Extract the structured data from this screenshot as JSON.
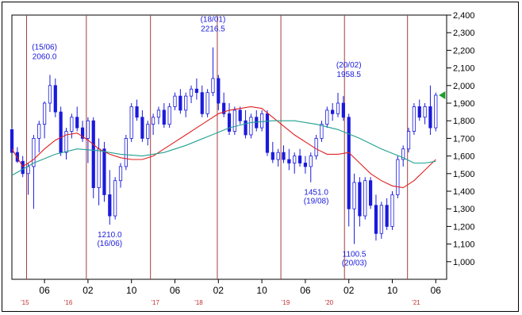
{
  "chart_data": {
    "type": "candlestick",
    "title": "",
    "xlabel": "",
    "ylabel": "",
    "ylim": [
      900,
      2400
    ],
    "yticks": [
      1000,
      1100,
      1200,
      1300,
      1400,
      1500,
      1600,
      1700,
      1800,
      1900,
      2000,
      2100,
      2200,
      2300,
      2400
    ],
    "ytick_labels": [
      "1,000",
      "1,100",
      "1,200",
      "1,300",
      "1,400",
      "1,500",
      "1,600",
      "1,700",
      "1,800",
      "1,900",
      "2,000",
      "2,100",
      "2,200",
      "2,300",
      "2,400"
    ],
    "x_ticks": [
      {
        "month": 6,
        "label": "06",
        "year_label": "'15"
      },
      {
        "month": 14,
        "label": "02",
        "year_label": "'16"
      },
      {
        "month": 22,
        "label": "10",
        "year_label": ""
      },
      {
        "month": 30,
        "label": "06",
        "year_label": "'17"
      },
      {
        "month": 38,
        "label": "02",
        "year_label": "'18"
      },
      {
        "month": 46,
        "label": "10",
        "year_label": ""
      },
      {
        "month": 54,
        "label": "06",
        "year_label": "'19"
      },
      {
        "month": 62,
        "label": "02",
        "year_label": "'20"
      },
      {
        "month": 70,
        "label": "10",
        "year_label": ""
      },
      {
        "month": 78,
        "label": "06",
        "year_label": "'21"
      }
    ],
    "x_range_months": [
      0,
      80
    ],
    "vertical_markers_months": [
      2.7,
      13.7,
      25.5,
      37.8,
      49.5,
      61.2,
      72.8
    ],
    "annotations": [
      {
        "date": "(15/06)",
        "value": "2060.0",
        "month": 6,
        "price": 2060,
        "position": "above"
      },
      {
        "date": "(16/06)",
        "value": "1210.0",
        "month": 18,
        "price": 1210,
        "position": "below"
      },
      {
        "date": "(18/01)",
        "value": "2216.5",
        "month": 37,
        "price": 2216.5,
        "position": "above"
      },
      {
        "date": "(19/08)",
        "value": "1451.0",
        "month": 56,
        "price": 1451,
        "position": "below"
      },
      {
        "date": "(20/02)",
        "value": "1958.5",
        "month": 62,
        "price": 1958.5,
        "position": "above"
      },
      {
        "date": "(20/03)",
        "value": "1100.5",
        "month": 63,
        "price": 1100.5,
        "position": "below"
      }
    ],
    "current_price": 1945,
    "series": [
      {
        "type": "candles",
        "colors": {
          "up": "#ffffff",
          "down": "#1a1adc",
          "outline": "#1a1adc"
        },
        "ohlc": [
          [
            1750,
            1760,
            1620,
            1620
          ],
          [
            1620,
            1650,
            1560,
            1570
          ],
          [
            1570,
            1600,
            1480,
            1500
          ],
          [
            1500,
            1560,
            1380,
            1540
          ],
          [
            1540,
            1720,
            1300,
            1700
          ],
          [
            1700,
            1800,
            1620,
            1780
          ],
          [
            1780,
            1910,
            1700,
            1900
          ],
          [
            1900,
            2060,
            1850,
            2000
          ],
          [
            2000,
            2040,
            1820,
            1850
          ],
          [
            1850,
            1880,
            1600,
            1620
          ],
          [
            1620,
            1760,
            1580,
            1740
          ],
          [
            1740,
            1840,
            1700,
            1820
          ],
          [
            1820,
            1880,
            1740,
            1760
          ],
          [
            1760,
            1800,
            1680,
            1700
          ],
          [
            1700,
            1820,
            1560,
            1800
          ],
          [
            1800,
            1820,
            1360,
            1420
          ],
          [
            1420,
            1700,
            1320,
            1640
          ],
          [
            1640,
            1680,
            1340,
            1380
          ],
          [
            1380,
            1520,
            1210,
            1260
          ],
          [
            1260,
            1480,
            1240,
            1460
          ],
          [
            1460,
            1560,
            1420,
            1540
          ],
          [
            1540,
            1720,
            1520,
            1700
          ],
          [
            1700,
            1900,
            1680,
            1880
          ],
          [
            1880,
            1920,
            1800,
            1820
          ],
          [
            1820,
            1860,
            1680,
            1700
          ],
          [
            1700,
            1800,
            1660,
            1780
          ],
          [
            1780,
            1840,
            1720,
            1820
          ],
          [
            1820,
            1880,
            1780,
            1860
          ],
          [
            1860,
            1900,
            1760,
            1780
          ],
          [
            1780,
            1900,
            1760,
            1880
          ],
          [
            1880,
            1960,
            1860,
            1940
          ],
          [
            1940,
            1980,
            1840,
            1860
          ],
          [
            1860,
            1960,
            1820,
            1940
          ],
          [
            1940,
            2000,
            1900,
            1980
          ],
          [
            1980,
            2040,
            1920,
            1960
          ],
          [
            1960,
            2000,
            1820,
            1840
          ],
          [
            1840,
            1980,
            1820,
            1960
          ],
          [
            1960,
            2216.5,
            1940,
            2040
          ],
          [
            2040,
            2060,
            1860,
            1900
          ],
          [
            1900,
            1960,
            1820,
            1840
          ],
          [
            1840,
            1900,
            1720,
            1740
          ],
          [
            1740,
            1880,
            1720,
            1860
          ],
          [
            1860,
            1880,
            1780,
            1800
          ],
          [
            1800,
            1860,
            1700,
            1720
          ],
          [
            1720,
            1840,
            1700,
            1820
          ],
          [
            1820,
            1860,
            1740,
            1760
          ],
          [
            1760,
            1860,
            1740,
            1840
          ],
          [
            1840,
            1860,
            1600,
            1620
          ],
          [
            1620,
            1680,
            1560,
            1580
          ],
          [
            1580,
            1640,
            1540,
            1620
          ],
          [
            1620,
            1660,
            1560,
            1580
          ],
          [
            1580,
            1640,
            1520,
            1560
          ],
          [
            1560,
            1620,
            1500,
            1600
          ],
          [
            1600,
            1640,
            1540,
            1560
          ],
          [
            1560,
            1600,
            1500,
            1540
          ],
          [
            1540,
            1620,
            1451,
            1600
          ],
          [
            1600,
            1720,
            1580,
            1700
          ],
          [
            1700,
            1800,
            1680,
            1780
          ],
          [
            1780,
            1880,
            1760,
            1860
          ],
          [
            1860,
            1900,
            1800,
            1840
          ],
          [
            1840,
            1958.5,
            1820,
            1900
          ],
          [
            1900,
            1940,
            1800,
            1820
          ],
          [
            1820,
            1840,
            1200,
            1300
          ],
          [
            1300,
            1500,
            1100.5,
            1450
          ],
          [
            1450,
            1480,
            1200,
            1260
          ],
          [
            1260,
            1480,
            1240,
            1460
          ],
          [
            1460,
            1480,
            1300,
            1320
          ],
          [
            1320,
            1380,
            1120,
            1160
          ],
          [
            1160,
            1340,
            1130,
            1320
          ],
          [
            1320,
            1360,
            1180,
            1200
          ],
          [
            1200,
            1400,
            1180,
            1380
          ],
          [
            1380,
            1600,
            1360,
            1580
          ],
          [
            1580,
            1660,
            1540,
            1640
          ],
          [
            1640,
            1760,
            1620,
            1740
          ],
          [
            1740,
            1900,
            1720,
            1880
          ],
          [
            1880,
            1920,
            1800,
            1820
          ],
          [
            1820,
            1900,
            1780,
            1880
          ],
          [
            1880,
            2000,
            1720,
            1760
          ],
          [
            1760,
            1960,
            1740,
            1945
          ]
        ]
      },
      {
        "type": "moving_average",
        "color": "#e02020",
        "points": [
          [
            0,
            1640
          ],
          [
            2,
            1540
          ],
          [
            4,
            1580
          ],
          [
            6,
            1640
          ],
          [
            8,
            1690
          ],
          [
            10,
            1720
          ],
          [
            12,
            1730
          ],
          [
            14,
            1690
          ],
          [
            16,
            1640
          ],
          [
            18,
            1610
          ],
          [
            20,
            1590
          ],
          [
            22,
            1580
          ],
          [
            24,
            1580
          ],
          [
            26,
            1600
          ],
          [
            28,
            1640
          ],
          [
            30,
            1680
          ],
          [
            32,
            1720
          ],
          [
            34,
            1760
          ],
          [
            36,
            1800
          ],
          [
            38,
            1840
          ],
          [
            40,
            1860
          ],
          [
            42,
            1870
          ],
          [
            44,
            1880
          ],
          [
            46,
            1870
          ],
          [
            48,
            1820
          ],
          [
            50,
            1770
          ],
          [
            52,
            1720
          ],
          [
            54,
            1680
          ],
          [
            56,
            1640
          ],
          [
            58,
            1610
          ],
          [
            60,
            1610
          ],
          [
            62,
            1620
          ],
          [
            64,
            1560
          ],
          [
            66,
            1500
          ],
          [
            68,
            1460
          ],
          [
            70,
            1430
          ],
          [
            72,
            1420
          ],
          [
            74,
            1460
          ],
          [
            76,
            1520
          ],
          [
            78,
            1580
          ]
        ]
      },
      {
        "type": "moving_average",
        "color": "#20a090",
        "points": [
          [
            0,
            1490
          ],
          [
            4,
            1560
          ],
          [
            8,
            1610
          ],
          [
            12,
            1640
          ],
          [
            16,
            1630
          ],
          [
            20,
            1610
          ],
          [
            24,
            1600
          ],
          [
            28,
            1620
          ],
          [
            32,
            1660
          ],
          [
            36,
            1710
          ],
          [
            40,
            1760
          ],
          [
            44,
            1790
          ],
          [
            48,
            1800
          ],
          [
            52,
            1800
          ],
          [
            56,
            1780
          ],
          [
            60,
            1750
          ],
          [
            64,
            1700
          ],
          [
            68,
            1640
          ],
          [
            72,
            1590
          ],
          [
            74,
            1560
          ],
          [
            76,
            1560
          ],
          [
            78,
            1570
          ]
        ]
      }
    ]
  }
}
